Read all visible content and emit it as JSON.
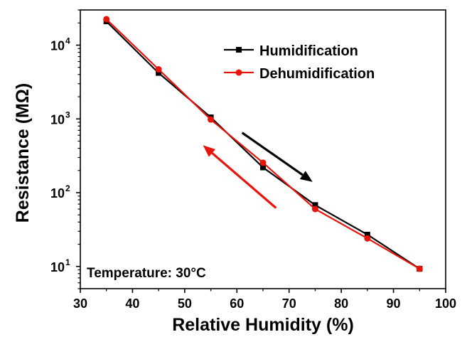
{
  "chart_data": {
    "type": "line",
    "xlabel": "Relative Humidity (%)",
    "ylabel": "Resistance (MΩ)",
    "x": [
      35,
      45,
      55,
      65,
      75,
      85,
      95
    ],
    "xlim": [
      30,
      100
    ],
    "x_ticks": [
      "30",
      "40",
      "50",
      "60",
      "70",
      "80",
      "90",
      "100"
    ],
    "ylim": [
      5,
      30000
    ],
    "yscale": "log",
    "y_ticks": [
      {
        "base": "10",
        "exp": "1"
      },
      {
        "base": "10",
        "exp": "2"
      },
      {
        "base": "10",
        "exp": "3"
      },
      {
        "base": "10",
        "exp": "4"
      }
    ],
    "series": [
      {
        "name": "Humidification",
        "color": "#000000",
        "marker": "square",
        "values": [
          21000,
          4200,
          1050,
          220,
          68,
          27,
          9.3
        ]
      },
      {
        "name": "Dehumidification",
        "color": "#e8140c",
        "marker": "circle",
        "values": [
          22500,
          4700,
          980,
          255,
          60,
          24,
          9.3
        ]
      }
    ],
    "legend_position": "top-right",
    "annotation": "Temperature: 30°C",
    "arrows": [
      {
        "color": "#000000",
        "from": [
          61,
          650
        ],
        "to": [
          74.5,
          140
        ]
      },
      {
        "color": "#e8140c",
        "from": [
          67.5,
          62
        ],
        "to": [
          53.5,
          440
        ]
      }
    ],
    "grid": false
  }
}
